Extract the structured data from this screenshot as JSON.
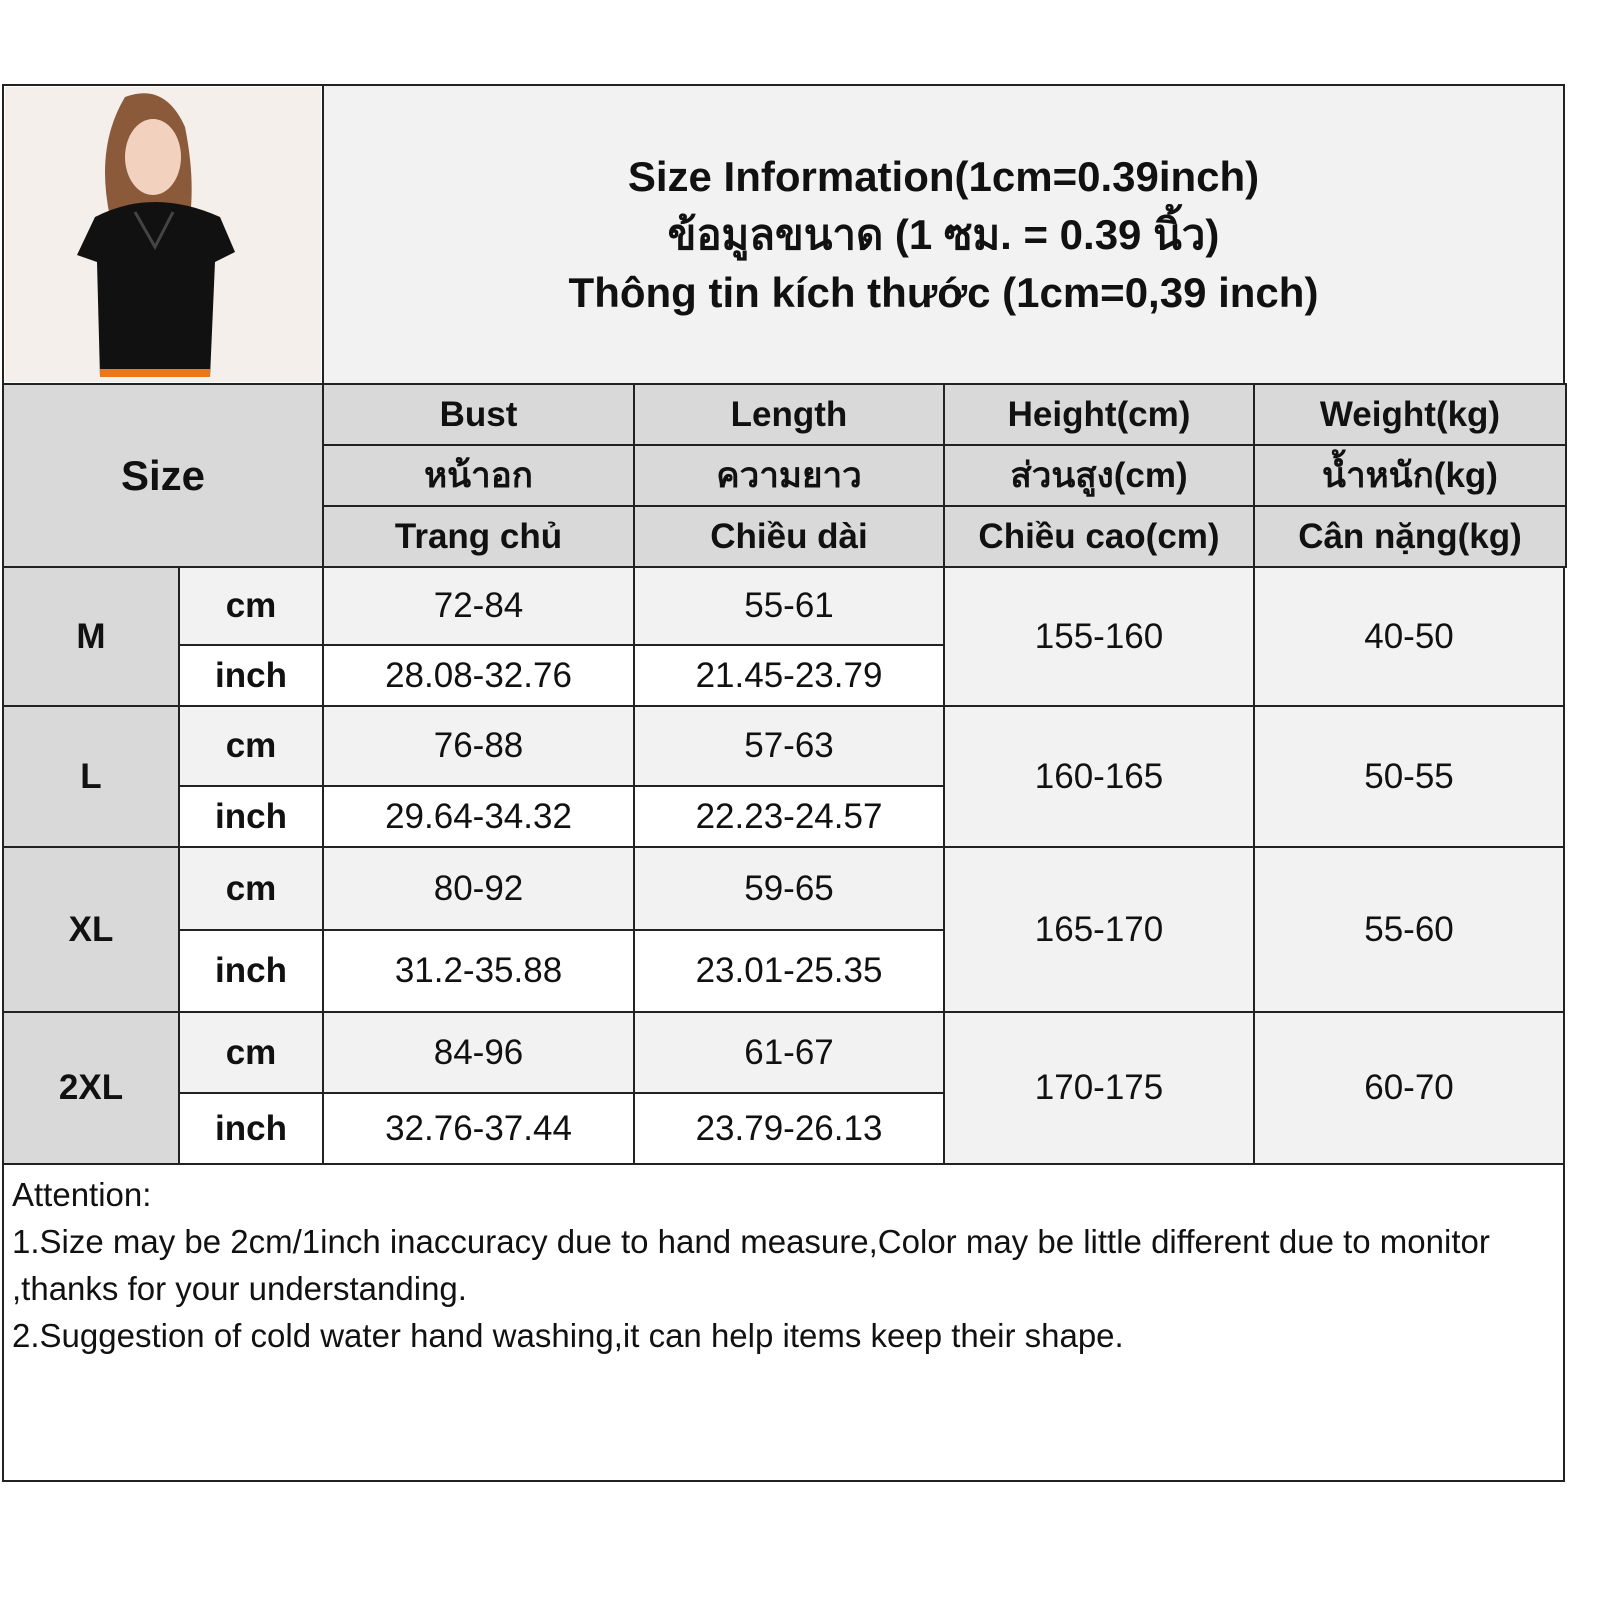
{
  "title": {
    "en": "Size Information(1cm=0.39inch)",
    "th": "ข้อมูลขนาด (1 ซม. = 0.39 นิ้ว)",
    "vi": "Thông tin kích thước (1cm=0,39 inch)"
  },
  "photo": {
    "icon": "model-wearing-black-tshirt"
  },
  "header": {
    "size": "Size",
    "columns": [
      {
        "en": "Bust",
        "th": "หน้าอก",
        "vi": "Trang chủ"
      },
      {
        "en": "Length",
        "th": "ความยาว",
        "vi": "Chiều dài"
      },
      {
        "en": "Height(cm)",
        "th": "ส่วนสูง(cm)",
        "vi": "Chiều cao(cm)"
      },
      {
        "en": "Weight(kg)",
        "th": "น้ำหนัก(kg)",
        "vi": "Cân nặng(kg)"
      }
    ]
  },
  "units": {
    "cm": "cm",
    "inch": "inch"
  },
  "rows": [
    {
      "size": "M",
      "bust_cm": "72-84",
      "length_cm": "55-61",
      "bust_inch": "28.08-32.76",
      "length_inch": "21.45-23.79",
      "height": "155-160",
      "weight": "40-50"
    },
    {
      "size": "L",
      "bust_cm": "76-88",
      "length_cm": "57-63",
      "bust_inch": "29.64-34.32",
      "length_inch": "22.23-24.57",
      "height": "160-165",
      "weight": "50-55"
    },
    {
      "size": "XL",
      "bust_cm": "80-92",
      "length_cm": "59-65",
      "bust_inch": "31.2-35.88",
      "length_inch": "23.01-25.35",
      "height": "165-170",
      "weight": "55-60"
    },
    {
      "size": "2XL",
      "bust_cm": "84-96",
      "length_cm": "61-67",
      "bust_inch": "32.76-37.44",
      "length_inch": "23.79-26.13",
      "height": "170-175",
      "weight": "60-70"
    }
  ],
  "notes": {
    "heading": "Attention:",
    "items": [
      "1.Size may be 2cm/1inch inaccuracy due to hand measure,Color may be little different due to monitor ,thanks for your understanding.",
      "2.Suggestion of cold water hand washing,it can help items keep their shape."
    ]
  }
}
